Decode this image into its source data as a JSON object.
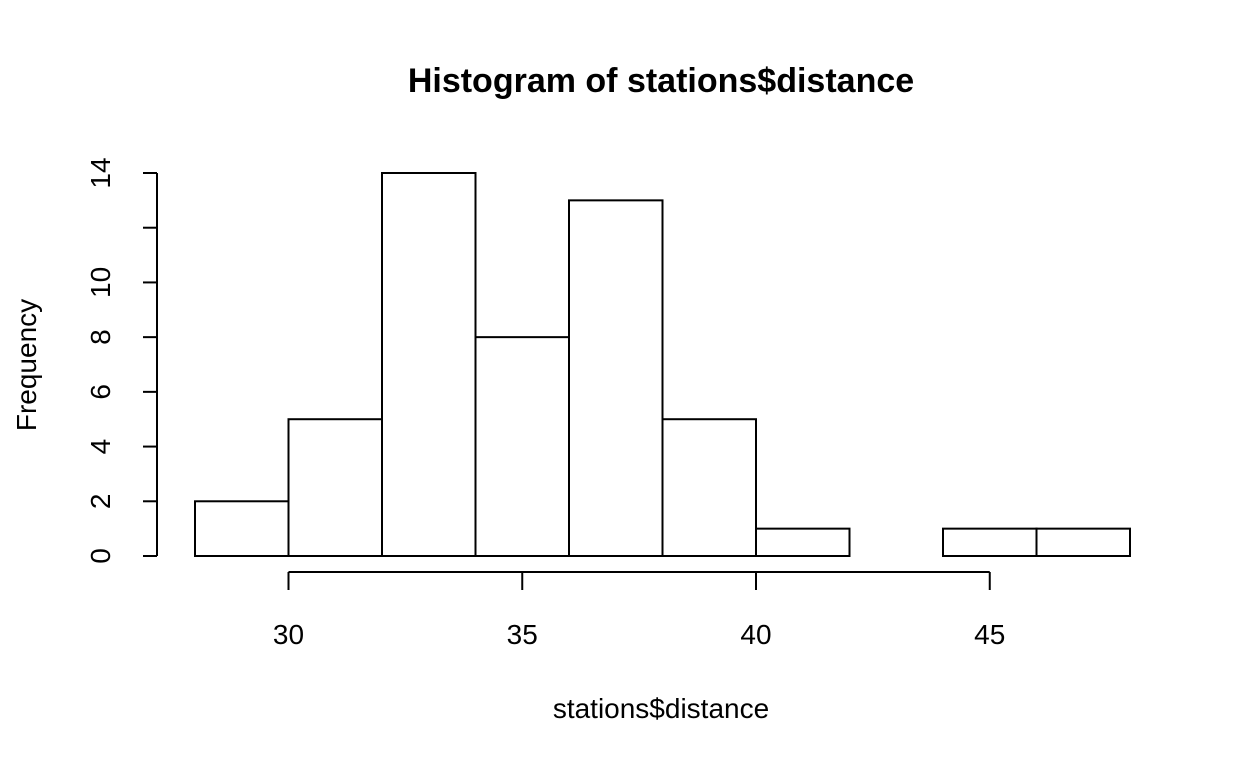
{
  "chart_data": {
    "type": "bar",
    "title": "Histogram of stations$distance",
    "xlabel": "stations$distance",
    "ylabel": "Frequency",
    "bins": [
      {
        "start": 28,
        "end": 30,
        "count": 2
      },
      {
        "start": 30,
        "end": 32,
        "count": 5
      },
      {
        "start": 32,
        "end": 34,
        "count": 14
      },
      {
        "start": 34,
        "end": 36,
        "count": 8
      },
      {
        "start": 36,
        "end": 38,
        "count": 13
      },
      {
        "start": 38,
        "end": 40,
        "count": 5
      },
      {
        "start": 40,
        "end": 42,
        "count": 1
      },
      {
        "start": 42,
        "end": 44,
        "count": 0
      },
      {
        "start": 44,
        "end": 46,
        "count": 1
      },
      {
        "start": 46,
        "end": 48,
        "count": 1
      }
    ],
    "x_ticks": [
      "30",
      "35",
      "40",
      "45"
    ],
    "y_ticks": [
      "0",
      "2",
      "4",
      "6",
      "8",
      "10",
      "12",
      "14"
    ],
    "y_tick_labels_shown": [
      "0",
      "2",
      "4",
      "6",
      "8",
      "10",
      "",
      "14"
    ],
    "xlim": [
      28,
      48
    ],
    "ylim": [
      0,
      14
    ],
    "grid": false,
    "bar_fill": "#ffffff",
    "bar_stroke": "#000000"
  }
}
